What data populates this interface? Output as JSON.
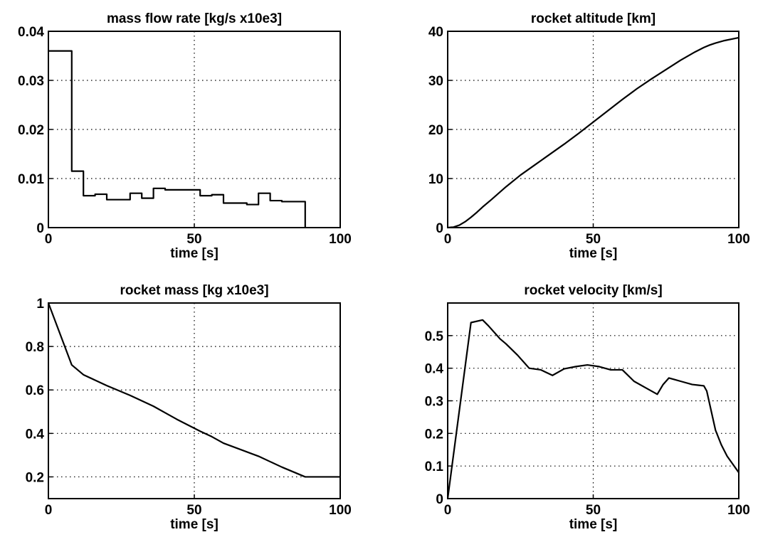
{
  "chart_data": [
    {
      "type": "line",
      "step": true,
      "title": "mass flow rate  [kg/s x10e3]",
      "xlabel": "time [s]",
      "ylabel": "",
      "xlim": [
        0,
        100
      ],
      "ylim": [
        0,
        0.04
      ],
      "xticks": [
        0,
        50,
        100
      ],
      "xtick_labels": [
        "0",
        "50",
        "100"
      ],
      "yticks": [
        0,
        0.01,
        0.02,
        0.03,
        0.04
      ],
      "ytick_labels": [
        "0",
        "0.01",
        "0.02",
        "0.03",
        "0.04"
      ],
      "grid": true,
      "series": [
        {
          "x": [
            0,
            8,
            8,
            12,
            12,
            16,
            16,
            20,
            20,
            28,
            28,
            32,
            32,
            36,
            36,
            40,
            40,
            44,
            44,
            52,
            52,
            56,
            56,
            60,
            60,
            68,
            68,
            72,
            72,
            76,
            76,
            80,
            80,
            88,
            88
          ],
          "y": [
            0.036,
            0.036,
            0.0115,
            0.0115,
            0.0065,
            0.0065,
            0.0068,
            0.0068,
            0.0057,
            0.0057,
            0.007,
            0.007,
            0.006,
            0.006,
            0.008,
            0.008,
            0.0077,
            0.0077,
            0.0077,
            0.0077,
            0.0065,
            0.0065,
            0.0067,
            0.0067,
            0.005,
            0.005,
            0.0047,
            0.0047,
            0.007,
            0.007,
            0.0055,
            0.0055,
            0.0053,
            0.0053,
            0
          ]
        }
      ]
    },
    {
      "type": "line",
      "title": "rocket altitude [km]",
      "xlabel": "time [s]",
      "ylabel": "",
      "xlim": [
        0,
        100
      ],
      "ylim": [
        0,
        40
      ],
      "xticks": [
        0,
        50,
        100
      ],
      "xtick_labels": [
        "0",
        "50",
        "100"
      ],
      "yticks": [
        0,
        10,
        20,
        30,
        40
      ],
      "ytick_labels": [
        "0",
        "10",
        "20",
        "30",
        "40"
      ],
      "grid": true,
      "series": [
        {
          "x": [
            0,
            2,
            4,
            6,
            8,
            10,
            12,
            15,
            20,
            25,
            30,
            35,
            40,
            45,
            50,
            55,
            60,
            65,
            70,
            75,
            80,
            85,
            88,
            90,
            92,
            95,
            100
          ],
          "y": [
            0,
            0.1,
            0.5,
            1.2,
            2.1,
            3.1,
            4.2,
            5.7,
            8.3,
            10.7,
            12.8,
            14.9,
            17.0,
            19.2,
            21.5,
            23.8,
            26.1,
            28.3,
            30.3,
            32.2,
            34.1,
            35.8,
            36.7,
            37.2,
            37.6,
            38.1,
            38.7
          ]
        }
      ]
    },
    {
      "type": "line",
      "title": "rocket mass [kg x10e3]",
      "xlabel": "time [s]",
      "ylabel": "",
      "xlim": [
        0,
        100
      ],
      "ylim": [
        0.1,
        1
      ],
      "xticks": [
        0,
        50,
        100
      ],
      "xtick_labels": [
        "0",
        "50",
        "100"
      ],
      "yticks": [
        0.2,
        0.4,
        0.6,
        0.8,
        1.0
      ],
      "ytick_labels": [
        "0.2",
        "0.4",
        "0.6",
        "0.8",
        "1"
      ],
      "grid": true,
      "series": [
        {
          "x": [
            0,
            8,
            12,
            16,
            20,
            28,
            32,
            36,
            40,
            44,
            52,
            56,
            60,
            68,
            72,
            76,
            80,
            88,
            100
          ],
          "y": [
            1.0,
            0.715,
            0.67,
            0.645,
            0.62,
            0.575,
            0.55,
            0.525,
            0.495,
            0.465,
            0.41,
            0.385,
            0.355,
            0.315,
            0.295,
            0.27,
            0.245,
            0.2,
            0.2
          ]
        }
      ]
    },
    {
      "type": "line",
      "title": "rocket velocity [km/s]",
      "xlabel": "time [s]",
      "ylabel": "",
      "xlim": [
        0,
        100
      ],
      "ylim": [
        0,
        0.6
      ],
      "xticks": [
        0,
        50,
        100
      ],
      "xtick_labels": [
        "0",
        "50",
        "100"
      ],
      "yticks": [
        0,
        0.1,
        0.2,
        0.3,
        0.4,
        0.5
      ],
      "ytick_labels": [
        "0",
        "0.1",
        "0.2",
        "0.3",
        "0.4",
        "0.5"
      ],
      "grid": true,
      "series": [
        {
          "x": [
            0,
            8,
            12,
            14,
            16,
            18,
            20,
            24,
            28,
            32,
            36,
            40,
            44,
            48,
            52,
            56,
            60,
            64,
            68,
            72,
            74,
            76,
            78,
            80,
            84,
            86,
            88,
            89,
            90,
            92,
            94,
            96,
            98,
            100
          ],
          "y": [
            0,
            0.54,
            0.548,
            0.53,
            0.51,
            0.49,
            0.475,
            0.44,
            0.4,
            0.395,
            0.378,
            0.398,
            0.405,
            0.41,
            0.405,
            0.395,
            0.395,
            0.36,
            0.34,
            0.32,
            0.35,
            0.37,
            0.365,
            0.36,
            0.35,
            0.348,
            0.346,
            0.33,
            0.29,
            0.21,
            0.165,
            0.13,
            0.105,
            0.08
          ]
        }
      ]
    }
  ]
}
